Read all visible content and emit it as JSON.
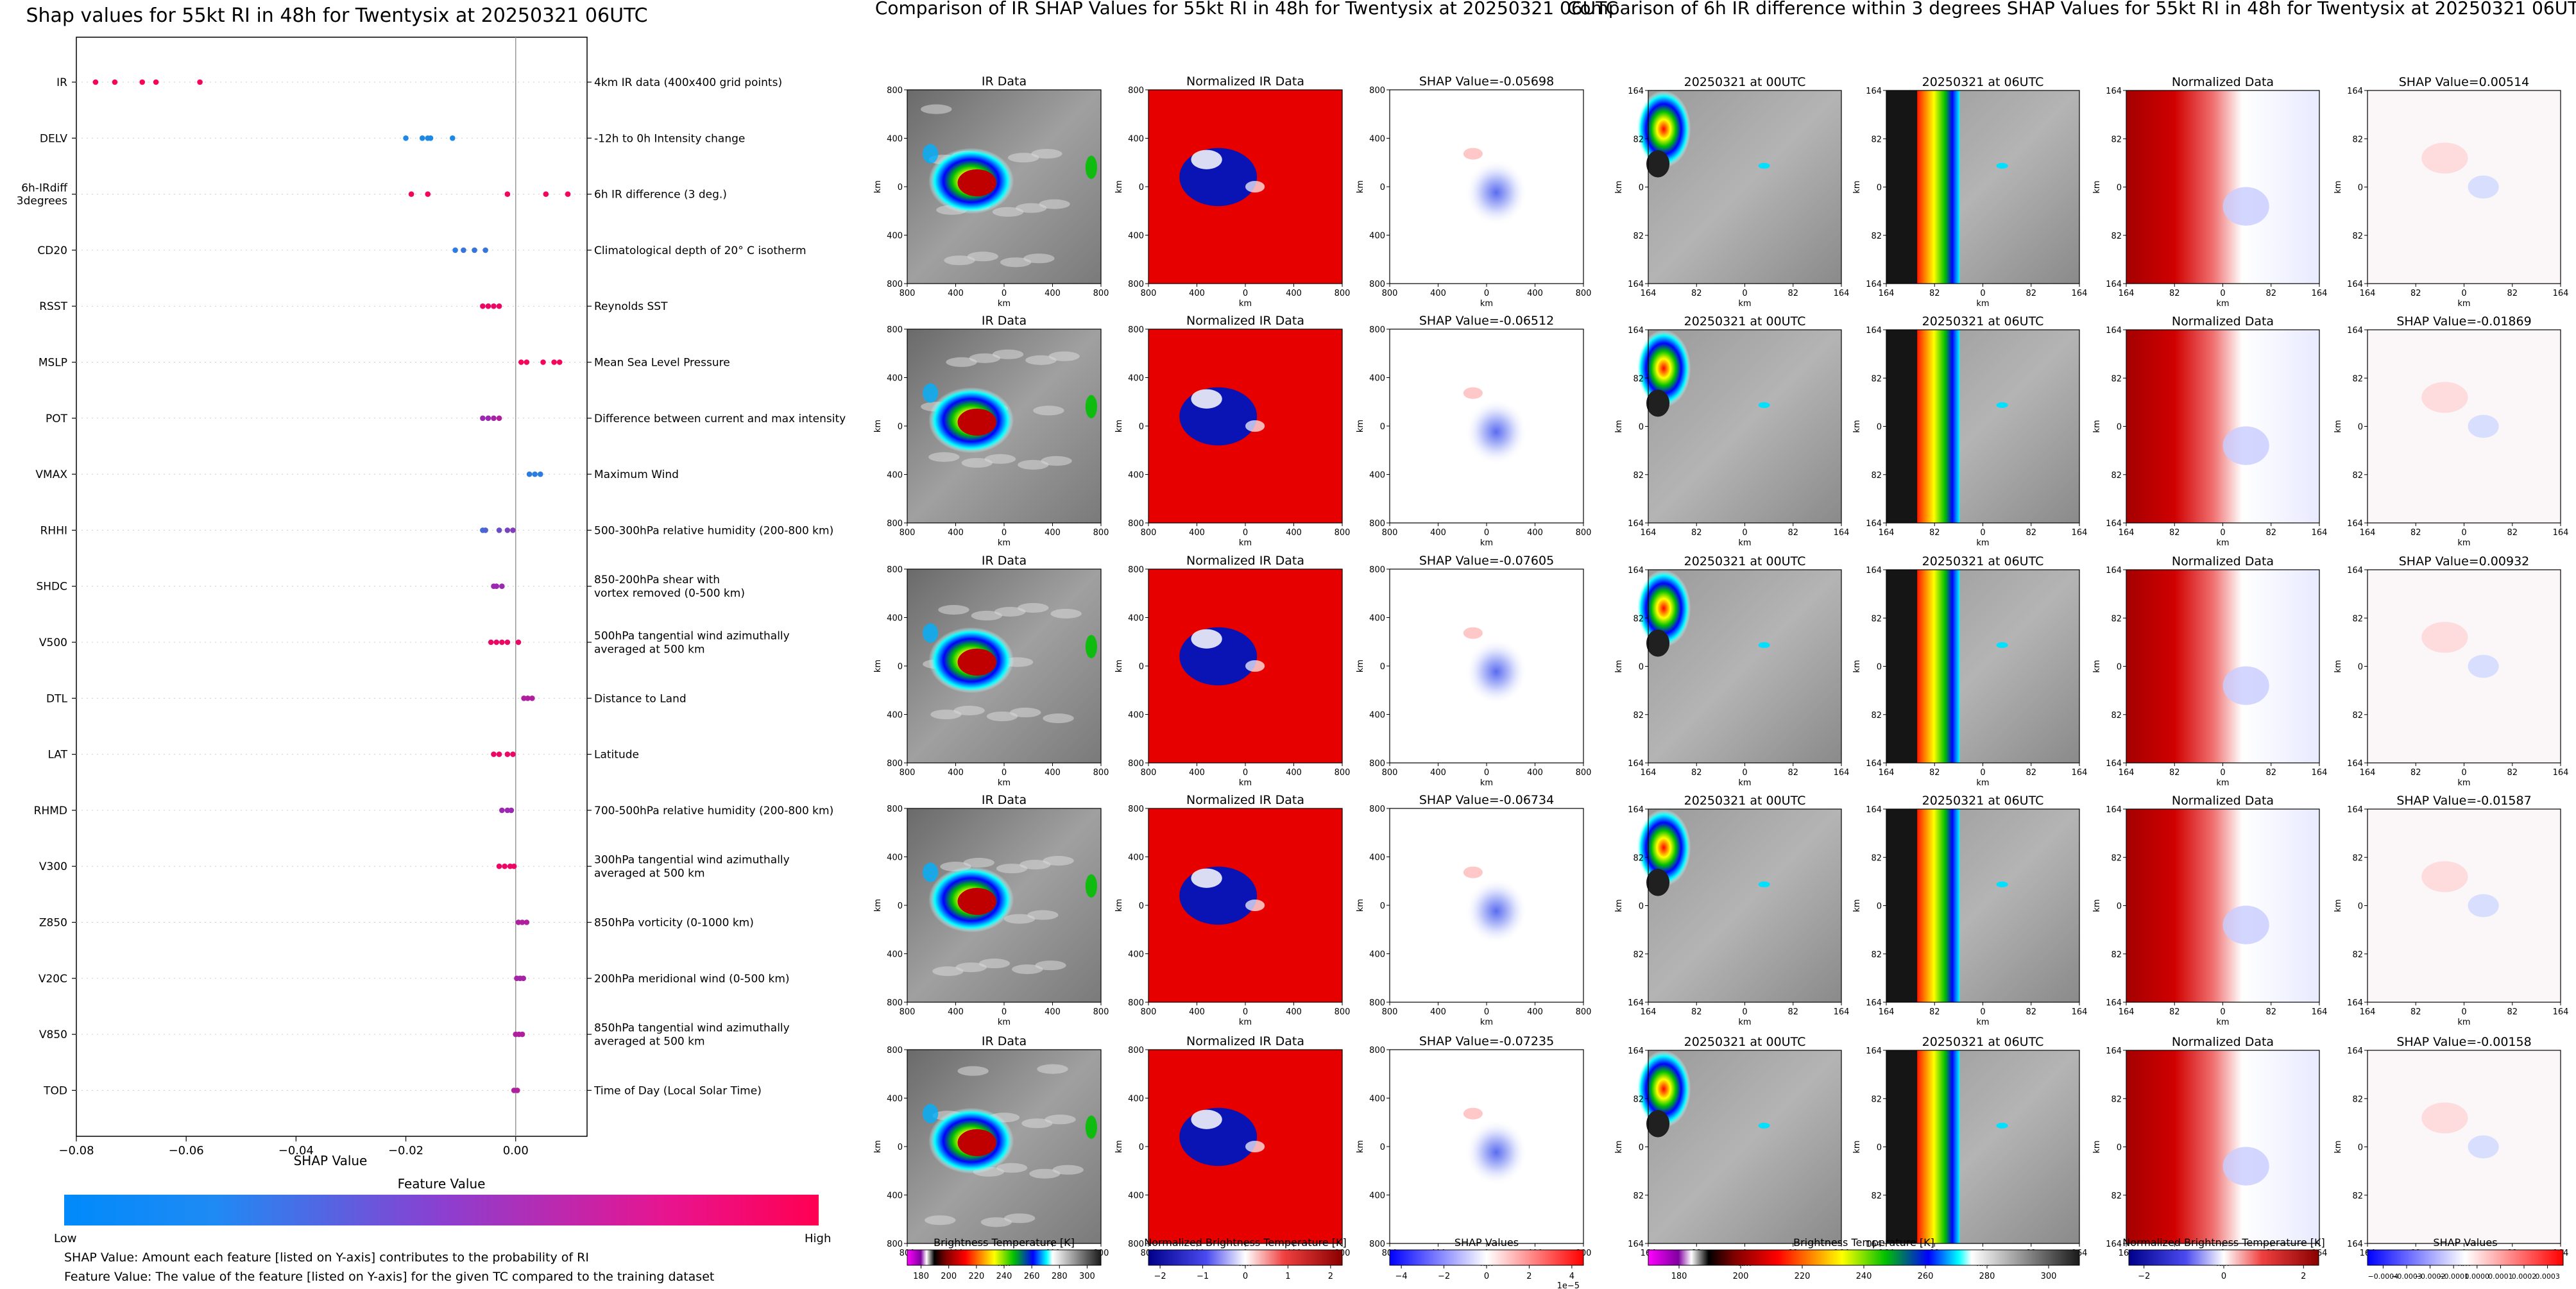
{
  "colors": {
    "low": "#1e88e5",
    "mid": "#9c27b0",
    "high": "#ff0052",
    "gray_dark": "#555555",
    "gray_light": "#dcdcdc",
    "shap_neg": "#0000ff",
    "shap_pos": "#ff0000",
    "norm_bg": "#e60000",
    "norm_cold": "#0a14b4"
  },
  "chart_data": [
    {
      "type": "scatter",
      "title": "Shap values for 55kt RI in 48h for Twentysix at 20250321 06UTC",
      "xlabel": "SHAP Value",
      "xlim": [
        -0.08,
        0.013
      ],
      "xticks": [
        -0.08,
        -0.06,
        -0.04,
        -0.02,
        0.0
      ],
      "xtick_labels": [
        "−0.08",
        "−0.06",
        "−0.04",
        "−0.02",
        "0.00"
      ],
      "colorbar": {
        "title": "Feature Value",
        "low_label": "Low",
        "high_label": "High"
      },
      "features": [
        {
          "name": "IR",
          "description": "4km IR data (400x400 grid points)",
          "points": [
            {
              "x": -0.0765,
              "c": 0.95
            },
            {
              "x": -0.073,
              "c": 0.95
            },
            {
              "x": -0.068,
              "c": 0.95
            },
            {
              "x": -0.0655,
              "c": 0.95
            },
            {
              "x": -0.0575,
              "c": 0.95
            }
          ]
        },
        {
          "name": "DELV",
          "description": "-12h to 0h Intensity change",
          "points": [
            {
              "x": -0.02,
              "c": 0.0
            },
            {
              "x": -0.017,
              "c": 0.0
            },
            {
              "x": -0.016,
              "c": 0.0
            },
            {
              "x": -0.0155,
              "c": 0.0
            },
            {
              "x": -0.0115,
              "c": 0.0
            }
          ]
        },
        {
          "name": "6h-IRdiff 3degrees",
          "description": "6h IR difference (3 deg.)",
          "points": [
            {
              "x": -0.019,
              "c": 0.95
            },
            {
              "x": -0.016,
              "c": 0.95
            },
            {
              "x": -0.0015,
              "c": 0.95
            },
            {
              "x": 0.0055,
              "c": 0.95
            },
            {
              "x": 0.0095,
              "c": 0.95
            }
          ]
        },
        {
          "name": "CD20",
          "description": "Climatological depth of 20° C isotherm",
          "points": [
            {
              "x": -0.011,
              "c": 0.05
            },
            {
              "x": -0.0095,
              "c": 0.1
            },
            {
              "x": -0.0075,
              "c": 0.1
            },
            {
              "x": -0.0055,
              "c": 0.1
            }
          ]
        },
        {
          "name": "RSST",
          "description": "Reynolds SST",
          "points": [
            {
              "x": -0.006,
              "c": 0.9
            },
            {
              "x": -0.005,
              "c": 0.9
            },
            {
              "x": -0.004,
              "c": 0.9
            },
            {
              "x": -0.003,
              "c": 0.9
            }
          ]
        },
        {
          "name": "MSLP",
          "description": "Mean Sea Level Pressure",
          "points": [
            {
              "x": 0.001,
              "c": 0.95
            },
            {
              "x": 0.002,
              "c": 0.95
            },
            {
              "x": 0.005,
              "c": 0.95
            },
            {
              "x": 0.007,
              "c": 0.95
            },
            {
              "x": 0.008,
              "c": 0.95
            }
          ]
        },
        {
          "name": "POT",
          "description": "Difference between current and max intensity",
          "points": [
            {
              "x": -0.006,
              "c": 0.5
            },
            {
              "x": -0.005,
              "c": 0.5
            },
            {
              "x": -0.004,
              "c": 0.55
            },
            {
              "x": -0.003,
              "c": 0.6
            }
          ]
        },
        {
          "name": "VMAX",
          "description": "Maximum Wind",
          "points": [
            {
              "x": 0.0025,
              "c": 0.05
            },
            {
              "x": 0.0035,
              "c": 0.05
            },
            {
              "x": 0.0045,
              "c": 0.05
            }
          ]
        },
        {
          "name": "RHHI",
          "description": "500-300hPa relative humidity (200-800 km)",
          "points": [
            {
              "x": -0.006,
              "c": 0.15
            },
            {
              "x": -0.0055,
              "c": 0.2
            },
            {
              "x": -0.003,
              "c": 0.3
            },
            {
              "x": -0.0015,
              "c": 0.35
            },
            {
              "x": -0.0005,
              "c": 0.4
            }
          ]
        },
        {
          "name": "SHDC",
          "description": "850-200hPa shear with vortex removed (0-500 km)",
          "points": [
            {
              "x": -0.004,
              "c": 0.5
            },
            {
              "x": -0.0035,
              "c": 0.5
            },
            {
              "x": -0.0025,
              "c": 0.5
            }
          ]
        },
        {
          "name": "V500",
          "description": "500hPa tangential wind azimuthally averaged at 500 km",
          "points": [
            {
              "x": -0.0045,
              "c": 0.9
            },
            {
              "x": -0.0035,
              "c": 0.9
            },
            {
              "x": -0.0025,
              "c": 0.9
            },
            {
              "x": -0.0015,
              "c": 0.9
            },
            {
              "x": 0.0005,
              "c": 0.9
            }
          ]
        },
        {
          "name": "DTL",
          "description": "Distance to Land",
          "points": [
            {
              "x": 0.0015,
              "c": 0.6
            },
            {
              "x": 0.0022,
              "c": 0.6
            },
            {
              "x": 0.003,
              "c": 0.6
            }
          ]
        },
        {
          "name": "LAT",
          "description": "Latitude",
          "points": [
            {
              "x": -0.004,
              "c": 0.9
            },
            {
              "x": -0.003,
              "c": 0.9
            },
            {
              "x": -0.0015,
              "c": 0.9
            },
            {
              "x": -0.0005,
              "c": 0.9
            }
          ]
        },
        {
          "name": "RHMD",
          "description": "700-500hPa relative humidity (200-800 km)",
          "points": [
            {
              "x": -0.0025,
              "c": 0.5
            },
            {
              "x": -0.0015,
              "c": 0.5
            },
            {
              "x": -0.0008,
              "c": 0.5
            }
          ]
        },
        {
          "name": "V300",
          "description": "300hPa tangential wind azimuthally averaged at 500 km",
          "points": [
            {
              "x": -0.003,
              "c": 0.9
            },
            {
              "x": -0.002,
              "c": 0.9
            },
            {
              "x": -0.001,
              "c": 0.9
            },
            {
              "x": -0.0003,
              "c": 0.9
            }
          ]
        },
        {
          "name": "Z850",
          "description": "850hPa vorticity (0-1000 km)",
          "points": [
            {
              "x": 0.0005,
              "c": 0.6
            },
            {
              "x": 0.0012,
              "c": 0.6
            },
            {
              "x": 0.002,
              "c": 0.6
            }
          ]
        },
        {
          "name": "V20C",
          "description": "200hPa meridional wind (0-500 km)",
          "points": [
            {
              "x": 0.0002,
              "c": 0.55
            },
            {
              "x": 0.0008,
              "c": 0.55
            },
            {
              "x": 0.0014,
              "c": 0.55
            }
          ]
        },
        {
          "name": "V850",
          "description": "850hPa tangential wind azimuthally averaged at 500 km",
          "points": [
            {
              "x": 0.0,
              "c": 0.6
            },
            {
              "x": 0.0006,
              "c": 0.6
            },
            {
              "x": 0.0012,
              "c": 0.6
            }
          ]
        },
        {
          "name": "TOD",
          "description": "Time of Day (Local Solar Time)",
          "points": [
            {
              "x": -0.0003,
              "c": 0.6
            },
            {
              "x": 0.0003,
              "c": 0.6
            }
          ]
        }
      ],
      "footnotes": [
        "SHAP Value: Amount each feature [listed on Y-axis] contributes to the probability of RI",
        "Feature Value: The value of the feature [listed on Y-axis] for the given TC compared to the training dataset"
      ]
    },
    {
      "type": "heatmap",
      "title": "Comparison of IR SHAP Values for 55kt RI in 48h for Twentysix at 20250321 06UTC",
      "column_titles": [
        "IR Data",
        "Normalized IR Data"
      ],
      "shap_titles": [
        "SHAP Value=-0.05698",
        "SHAP Value=-0.06512",
        "SHAP Value=-0.07605",
        "SHAP Value=-0.06734",
        "SHAP Value=-0.07235"
      ],
      "axis_ticks": [
        "800",
        "400",
        "0",
        "400",
        "800"
      ],
      "axis_label": "km",
      "colorbars": [
        {
          "label": "Brightness Temperature [K]",
          "ticks": [
            "180",
            "200",
            "220",
            "240",
            "260",
            "280",
            "300"
          ]
        },
        {
          "label": "Normalized Brightness Temperature [K]",
          "ticks": [
            "−2",
            "−1",
            "0",
            "1",
            "2"
          ]
        },
        {
          "label": "SHAP Values",
          "ticks": [
            "−4",
            "−2",
            "0",
            "2",
            "4"
          ],
          "exponent": "1e−5"
        }
      ]
    },
    {
      "type": "heatmap",
      "title": "Comparison of 6h IR difference within 3 degrees SHAP Values for 55kt RI in 48h for Twentysix at 20250321 06UTC",
      "column_titles": [
        "20250321 at 00UTC",
        "20250321 at 06UTC",
        "Normalized Data"
      ],
      "shap_titles": [
        "SHAP Value=0.00514",
        "SHAP Value=-0.01869",
        "SHAP Value=0.00932",
        "SHAP Value=-0.01587",
        "SHAP Value=-0.00158"
      ],
      "axis_ticks": [
        "164",
        "82",
        "0",
        "82",
        "164"
      ],
      "axis_label": "km",
      "colorbars": [
        {
          "label": "Brightness Temperature [K]",
          "ticks": [
            "180",
            "200",
            "220",
            "240",
            "260",
            "280",
            "300"
          ]
        },
        {
          "label": "Normalized Brightness Temperature [K]",
          "ticks": [
            "−2",
            "0",
            "2"
          ]
        },
        {
          "label": "SHAP Values",
          "ticks": [
            "−0.0004",
            "−0.0003",
            "−0.0002",
            "−0.0001",
            "0.0000",
            "0.0001",
            "0.0002",
            "0.0003"
          ]
        }
      ]
    }
  ]
}
